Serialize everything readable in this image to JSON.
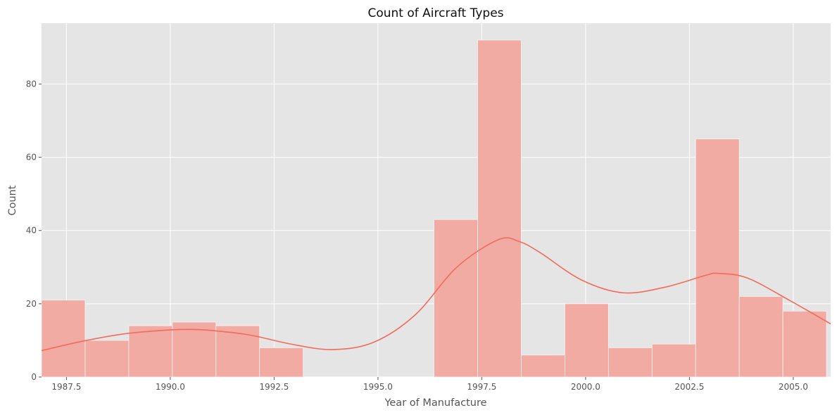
{
  "chart_data": {
    "type": "bar",
    "subtype": "histogram-with-kde",
    "title": "Count of Aircraft Types",
    "xlabel": "Year of Manufacture",
    "ylabel": "Count",
    "xlim": [
      1986.9,
      2005.9
    ],
    "ylim": [
      0,
      96.6
    ],
    "grid": true,
    "legend": "none",
    "x_ticks": [
      1987.5,
      1990.0,
      1992.5,
      1995.0,
      1997.5,
      2000.0,
      2002.5,
      2005.0
    ],
    "x_tick_labels": [
      "1987.5",
      "1990.0",
      "1992.5",
      "1995.0",
      "1997.5",
      "2000.0",
      "2002.5",
      "2005.0"
    ],
    "y_ticks": [
      0,
      20,
      40,
      60,
      80
    ],
    "y_tick_labels": [
      "0",
      "20",
      "40",
      "60",
      "80"
    ],
    "bins": [
      {
        "x0": 1986.9,
        "x1": 1987.95,
        "count": 21
      },
      {
        "x0": 1987.95,
        "x1": 1989.0,
        "count": 10
      },
      {
        "x0": 1989.0,
        "x1": 1990.05,
        "count": 14
      },
      {
        "x0": 1990.05,
        "x1": 1991.1,
        "count": 15
      },
      {
        "x0": 1991.1,
        "x1": 1992.15,
        "count": 14
      },
      {
        "x0": 1992.15,
        "x1": 1993.2,
        "count": 8
      },
      {
        "x0": 1993.2,
        "x1": 1994.25,
        "count": 0
      },
      {
        "x0": 1994.25,
        "x1": 1995.3,
        "count": 0
      },
      {
        "x0": 1995.3,
        "x1": 1996.35,
        "count": 0
      },
      {
        "x0": 1996.35,
        "x1": 1997.4,
        "count": 43
      },
      {
        "x0": 1997.4,
        "x1": 1998.45,
        "count": 92
      },
      {
        "x0": 1998.45,
        "x1": 1999.5,
        "count": 6
      },
      {
        "x0": 1999.5,
        "x1": 2000.55,
        "count": 20
      },
      {
        "x0": 2000.55,
        "x1": 2001.6,
        "count": 8
      },
      {
        "x0": 2001.6,
        "x1": 2002.65,
        "count": 9
      },
      {
        "x0": 2002.65,
        "x1": 2003.7,
        "count": 65
      },
      {
        "x0": 2003.7,
        "x1": 2004.75,
        "count": 22
      },
      {
        "x0": 2004.75,
        "x1": 2005.8,
        "count": 18
      }
    ],
    "kde": {
      "x": [
        1986.9,
        1987.9,
        1988.9,
        1989.9,
        1990.4,
        1990.9,
        1991.9,
        1992.9,
        1993.9,
        1994.9,
        1995.9,
        1996.9,
        1997.9,
        1998.4,
        1998.9,
        1999.9,
        2000.9,
        2001.9,
        2002.9,
        2003.2,
        2003.9,
        2004.9,
        2005.9
      ],
      "y": [
        7.2,
        9.8,
        11.8,
        12.8,
        13.0,
        12.8,
        11.5,
        9.0,
        7.5,
        9.5,
        17.0,
        30.0,
        37.5,
        37.0,
        34.0,
        26.5,
        23.0,
        24.5,
        27.8,
        28.3,
        27.0,
        21.0,
        14.5
      ]
    },
    "colors": {
      "bar_fill": "#f2aba3",
      "bar_edge": "#f5f5f5",
      "kde_line": "#f26b5b",
      "plot_background": "#e5e5e5",
      "grid": "#ffffff"
    }
  }
}
